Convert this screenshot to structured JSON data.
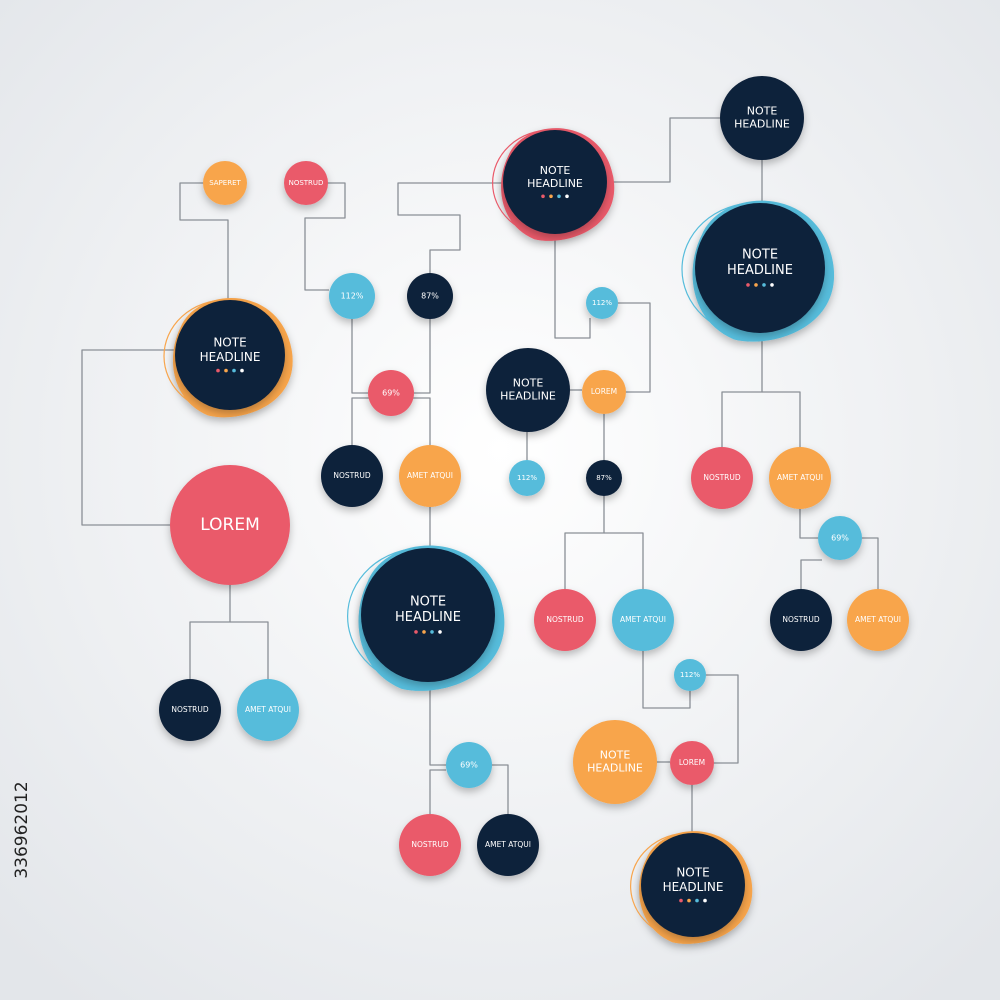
{
  "nodes": [
    {
      "label": [
        "SAPERET"
      ]
    },
    {
      "label": [
        "NOSTRUD"
      ]
    },
    {
      "label": [
        "NOTE",
        "HEADLINE"
      ]
    },
    {
      "label": [
        "LOREM"
      ]
    },
    {
      "label": [
        "NOSTRUD"
      ]
    },
    {
      "label": [
        "AMET ATQUI"
      ]
    },
    {
      "label": [
        "112%"
      ]
    },
    {
      "label": [
        "87%"
      ]
    },
    {
      "label": [
        "69%"
      ]
    },
    {
      "label": [
        "NOSTRUD"
      ]
    },
    {
      "label": [
        "AMET ATQUI"
      ]
    },
    {
      "label": [
        "NOTE",
        "HEADLINE"
      ]
    },
    {
      "label": [
        "69%"
      ]
    },
    {
      "label": [
        "NOSTRUD"
      ]
    },
    {
      "label": [
        "AMET ATQUI"
      ]
    },
    {
      "label": [
        "NOTE",
        "HEADLINE"
      ]
    },
    {
      "label": [
        "112%"
      ]
    },
    {
      "label": [
        "NOTE",
        "HEADLINE"
      ]
    },
    {
      "label": [
        "LOREM"
      ]
    },
    {
      "label": [
        "112%"
      ]
    },
    {
      "label": [
        "87%"
      ]
    },
    {
      "label": [
        "NOSTRUD"
      ]
    },
    {
      "label": [
        "AMET ATQUI"
      ]
    },
    {
      "label": [
        "112%"
      ]
    },
    {
      "label": [
        "NOTE",
        "HEADLINE"
      ]
    },
    {
      "label": [
        "LOREM"
      ]
    },
    {
      "label": [
        "NOTE",
        "HEADLINE"
      ]
    },
    {
      "label": [
        "NOTE",
        "HEADLINE"
      ]
    },
    {
      "label": [
        "NOTE",
        "HEADLINE"
      ]
    },
    {
      "label": [
        "NOSTRUD"
      ]
    },
    {
      "label": [
        "AMET ATQUI"
      ]
    },
    {
      "label": [
        "69%"
      ]
    },
    {
      "label": [
        "NOSTRUD"
      ]
    },
    {
      "label": [
        "AMET ATQUI"
      ]
    }
  ],
  "watermark": "336962012"
}
